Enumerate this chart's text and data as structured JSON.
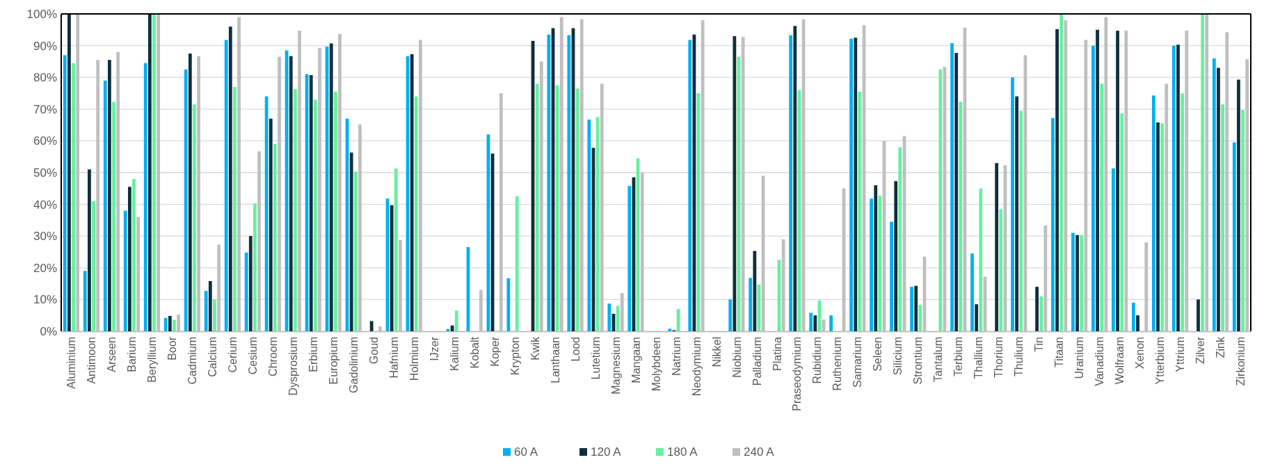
{
  "chart_data": {
    "type": "bar",
    "categories": [
      "Aluminium",
      "Antimoon",
      "Arseen",
      "Barium",
      "Beryllium",
      "Boor",
      "Cadmium",
      "Calcium",
      "Cerium",
      "Cesium",
      "Chroom",
      "Dysprosium",
      "Erbium",
      "Europium",
      "Gadolinium",
      "Goud",
      "Hafnium",
      "Holmium",
      "IJzer",
      "Kalium",
      "Kobalt",
      "Koper",
      "Krypton",
      "Kwik",
      "Lanthaan",
      "Lood",
      "Lutetium",
      "Magnesium",
      "Mangaan",
      "Molybdeen",
      "Natrium",
      "Neodymium",
      "Nikkel",
      "Niobium",
      "Palladium",
      "Platina",
      "Praseodymium",
      "Rubidium",
      "Ruthenium",
      "Samarium",
      "Seleen",
      "Silicium",
      "Strontium",
      "Tantalum",
      "Terbium",
      "Thallium",
      "Thorium",
      "Thulium",
      "Tin",
      "Titaan",
      "Uranium",
      "Vanadium",
      "Wolfraam",
      "Xenon",
      "Ytterbium",
      "Yttrium",
      "Zilver",
      "Zink",
      "Zirkonium"
    ],
    "series": [
      {
        "name": "60 A",
        "color": "#00b0f0",
        "values": [
          87,
          19,
          79,
          38,
          84.5,
          4.2,
          82.5,
          12.7,
          91.8,
          24.8,
          74,
          88.5,
          81,
          89.7,
          67,
          null,
          41.8,
          86.7,
          null,
          0.7,
          26.5,
          62,
          16.7,
          null,
          93.5,
          93.3,
          66.7,
          8.7,
          45.8,
          null,
          0.8,
          91.8,
          null,
          10,
          16.8,
          null,
          93.3,
          5.8,
          5,
          92.2,
          41.8,
          34.5,
          14,
          null,
          90.8,
          24.5,
          null,
          80,
          null,
          67.2,
          31,
          90,
          51.3,
          9,
          74.3,
          90,
          null,
          86,
          59.5
        ]
      },
      {
        "name": "120 A",
        "color": "#0e2f3b",
        "values": [
          100,
          51,
          85.5,
          45.5,
          100,
          4.8,
          87.5,
          15.8,
          96,
          30,
          67,
          86.7,
          80.7,
          90.7,
          56.3,
          3.2,
          39.7,
          87.3,
          null,
          1.8,
          null,
          56,
          null,
          91.5,
          95.5,
          95.5,
          57.8,
          5.5,
          48.5,
          null,
          0.3,
          93.5,
          null,
          93,
          25.3,
          null,
          96.2,
          5,
          null,
          92.5,
          46,
          47.3,
          14.3,
          null,
          87.7,
          8.5,
          53,
          74,
          14,
          95.2,
          30.3,
          95,
          94.7,
          5,
          65.8,
          90.3,
          10,
          83,
          79.3
        ]
      },
      {
        "name": "180 A",
        "color": "#66f0a0",
        "values": [
          84.5,
          41,
          72.3,
          48,
          100,
          3.6,
          71.5,
          10,
          77,
          40.3,
          59,
          76.3,
          73,
          75.5,
          50.3,
          null,
          51.3,
          74,
          null,
          6.5,
          null,
          null,
          42.5,
          78,
          77.5,
          76.5,
          67.5,
          8,
          54.5,
          null,
          7,
          75,
          null,
          86.5,
          14.7,
          22.5,
          76,
          9.7,
          null,
          75.5,
          42.7,
          58,
          8.3,
          82.5,
          72.3,
          45,
          38.5,
          69.5,
          11,
          100,
          30.3,
          78,
          68.7,
          null,
          65.5,
          75,
          100,
          71.5,
          69.7
        ]
      },
      {
        "name": "240 A",
        "color": "#bfbfbf",
        "values": [
          100,
          85.5,
          88,
          36,
          100,
          5.2,
          86.7,
          27.3,
          99,
          56.7,
          86.5,
          94.7,
          89.3,
          93.7,
          65.2,
          1.5,
          28.7,
          91.8,
          null,
          null,
          13,
          75,
          null,
          85,
          99,
          98.3,
          78,
          12,
          50,
          null,
          null,
          98,
          null,
          92.7,
          49,
          29,
          98.3,
          3.7,
          45,
          96.5,
          60,
          61.5,
          23.5,
          83.3,
          95.7,
          17.2,
          52.3,
          87,
          33.3,
          98,
          91.8,
          99,
          94.7,
          28,
          78,
          94.7,
          100,
          94.2,
          85.7
        ]
      }
    ],
    "ylim": [
      0,
      100
    ],
    "yticks": [
      {
        "value": 0,
        "label": "0%"
      },
      {
        "value": 10,
        "label": "10%"
      },
      {
        "value": 20,
        "label": "20%"
      },
      {
        "value": 30,
        "label": "30%"
      },
      {
        "value": 40,
        "label": "40%"
      },
      {
        "value": 50,
        "label": "50%"
      },
      {
        "value": 60,
        "label": "60%"
      },
      {
        "value": 70,
        "label": "70%"
      },
      {
        "value": 80,
        "label": "80%"
      },
      {
        "value": 90,
        "label": "90%"
      },
      {
        "value": 100,
        "label": "100%"
      }
    ],
    "grid": "y",
    "legend": "bottom"
  }
}
